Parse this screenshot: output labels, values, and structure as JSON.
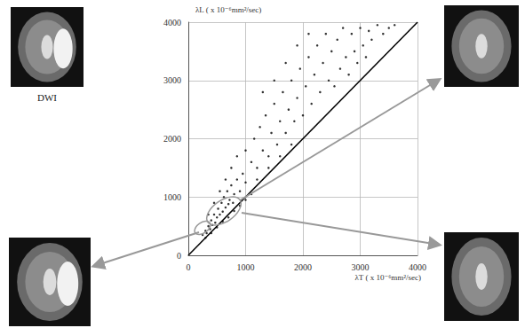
{
  "chart_data": {
    "type": "scatter",
    "y_label": "λL ( x 10⁻⁶mm²/sec)",
    "x_label": "λT ( x 10⁻⁶mm²/sec)",
    "annotations": [
      "DWI"
    ],
    "xlim": [
      0,
      4000
    ],
    "ylim": [
      0,
      4000
    ],
    "xticks": [
      0,
      1000,
      2000,
      3000,
      4000
    ],
    "yticks": [
      0,
      1000,
      2000,
      3000,
      4000
    ],
    "grid": true,
    "series": [
      {
        "type": "scatter",
        "color": "#000000",
        "marker": "circle",
        "x": [
          250,
          300,
          320,
          350,
          380,
          400,
          420,
          450,
          470,
          500,
          520,
          550,
          580,
          600,
          620,
          650,
          680,
          700,
          720,
          750,
          780,
          800,
          850,
          900,
          950,
          1000,
          300,
          400,
          500,
          600,
          700,
          800,
          900,
          350,
          450,
          550,
          650,
          750,
          850,
          1000,
          1100,
          1150,
          1200,
          1250,
          1300,
          1350,
          1400,
          1450,
          1500,
          1550,
          1600,
          1650,
          1700,
          1750,
          1800,
          1850,
          1900,
          1950,
          2000,
          2050,
          2100,
          2150,
          2200,
          2250,
          2300,
          2350,
          2400,
          2450,
          2500,
          2550,
          2600,
          2650,
          2700,
          2750,
          2800,
          2850,
          2900,
          2950,
          3000,
          3050,
          3100,
          3150,
          3200,
          3300,
          3400,
          3500,
          3600,
          1200,
          1400,
          1600,
          1800,
          1000,
          1100,
          1300,
          1500,
          1700,
          1900,
          2100
        ],
        "values": [
          350,
          420,
          380,
          500,
          450,
          600,
          520,
          700,
          560,
          650,
          800,
          700,
          900,
          750,
          1000,
          820,
          1100,
          880,
          950,
          1200,
          900,
          1050,
          1300,
          1100,
          1400,
          1250,
          300,
          380,
          480,
          580,
          650,
          760,
          850,
          700,
          900,
          1100,
          1300,
          1500,
          1700,
          1800,
          1600,
          2000,
          1500,
          2200,
          1800,
          2400,
          1700,
          2100,
          2600,
          1900,
          2300,
          2800,
          2100,
          2500,
          3000,
          2300,
          2700,
          3200,
          2400,
          2900,
          3400,
          2600,
          3100,
          3600,
          2800,
          3300,
          3800,
          3000,
          3500,
          2900,
          3700,
          3200,
          3900,
          3400,
          3100,
          3800,
          3500,
          3300,
          3900,
          3600,
          3400,
          3850,
          3700,
          3950,
          3800,
          3900,
          3950,
          1300,
          1500,
          1700,
          1900,
          950,
          1050,
          2800,
          3000,
          3300,
          3600,
          3800
        ]
      },
      {
        "type": "line",
        "color": "#000000",
        "line_style": "solid",
        "x": [
          0,
          4000
        ],
        "values": [
          0,
          4000
        ]
      }
    ]
  }
}
